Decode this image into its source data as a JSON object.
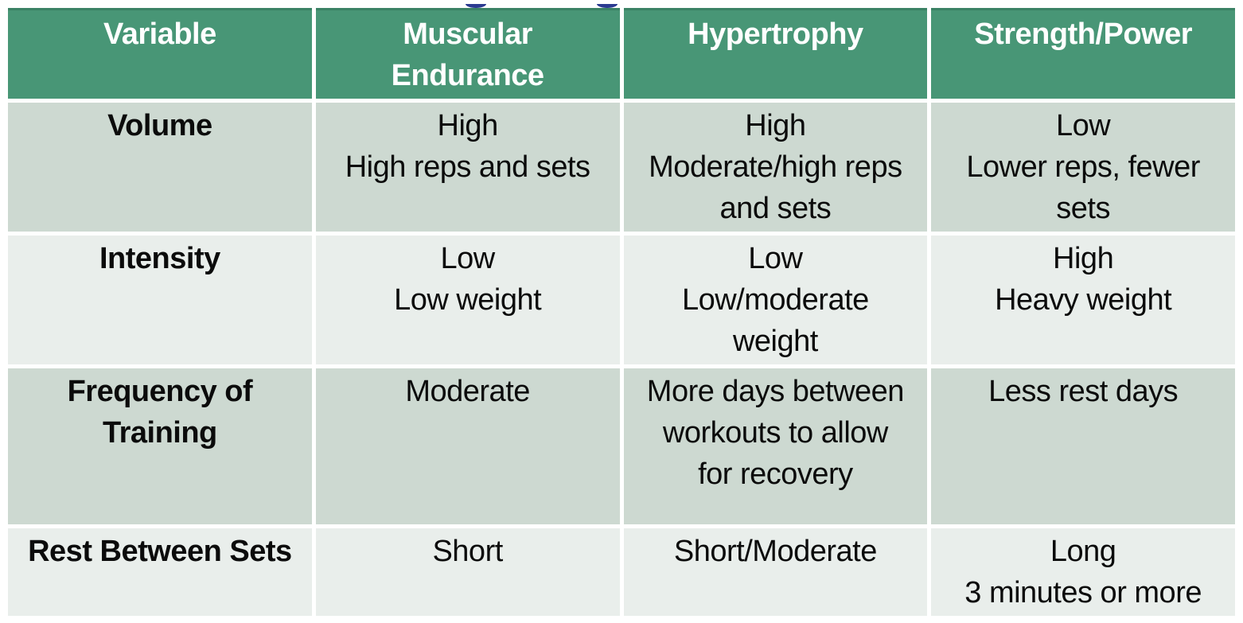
{
  "theme": {
    "header_bg": "#489676",
    "header_text": "#ffffff",
    "row_dark_bg": "#cdd9d1",
    "row_light_bg": "#e9eeeb",
    "body_text": "#0b0b0b",
    "gap_color": "#ffffff",
    "cropped_title_descender_color": "#2b3a90"
  },
  "table": {
    "header_lines": [
      [
        "Variable"
      ],
      [
        "Muscular",
        "Endurance"
      ],
      [
        "Hypertrophy"
      ],
      [
        "Strength/Power"
      ]
    ],
    "rows": [
      {
        "label_lines": [
          "Volume"
        ],
        "cells": [
          [
            "High",
            "High reps and sets"
          ],
          [
            "High",
            "Moderate/high reps",
            "and sets"
          ],
          [
            "Low",
            "Lower reps, fewer",
            "sets"
          ]
        ]
      },
      {
        "label_lines": [
          "Intensity"
        ],
        "cells": [
          [
            "Low",
            "Low weight"
          ],
          [
            "Low",
            "Low/moderate",
            "weight"
          ],
          [
            "High",
            "Heavy weight"
          ]
        ]
      },
      {
        "label_lines": [
          "Frequency of",
          "Training"
        ],
        "cells": [
          [
            "Moderate"
          ],
          [
            "More days between",
            "workouts to allow",
            "for recovery"
          ],
          [
            "Less rest days"
          ]
        ]
      },
      {
        "label_lines": [
          "Rest Between Sets"
        ],
        "cells": [
          [
            "Short"
          ],
          [
            "Short/Moderate"
          ],
          [
            "Long",
            "3 minutes or more"
          ]
        ]
      }
    ]
  }
}
